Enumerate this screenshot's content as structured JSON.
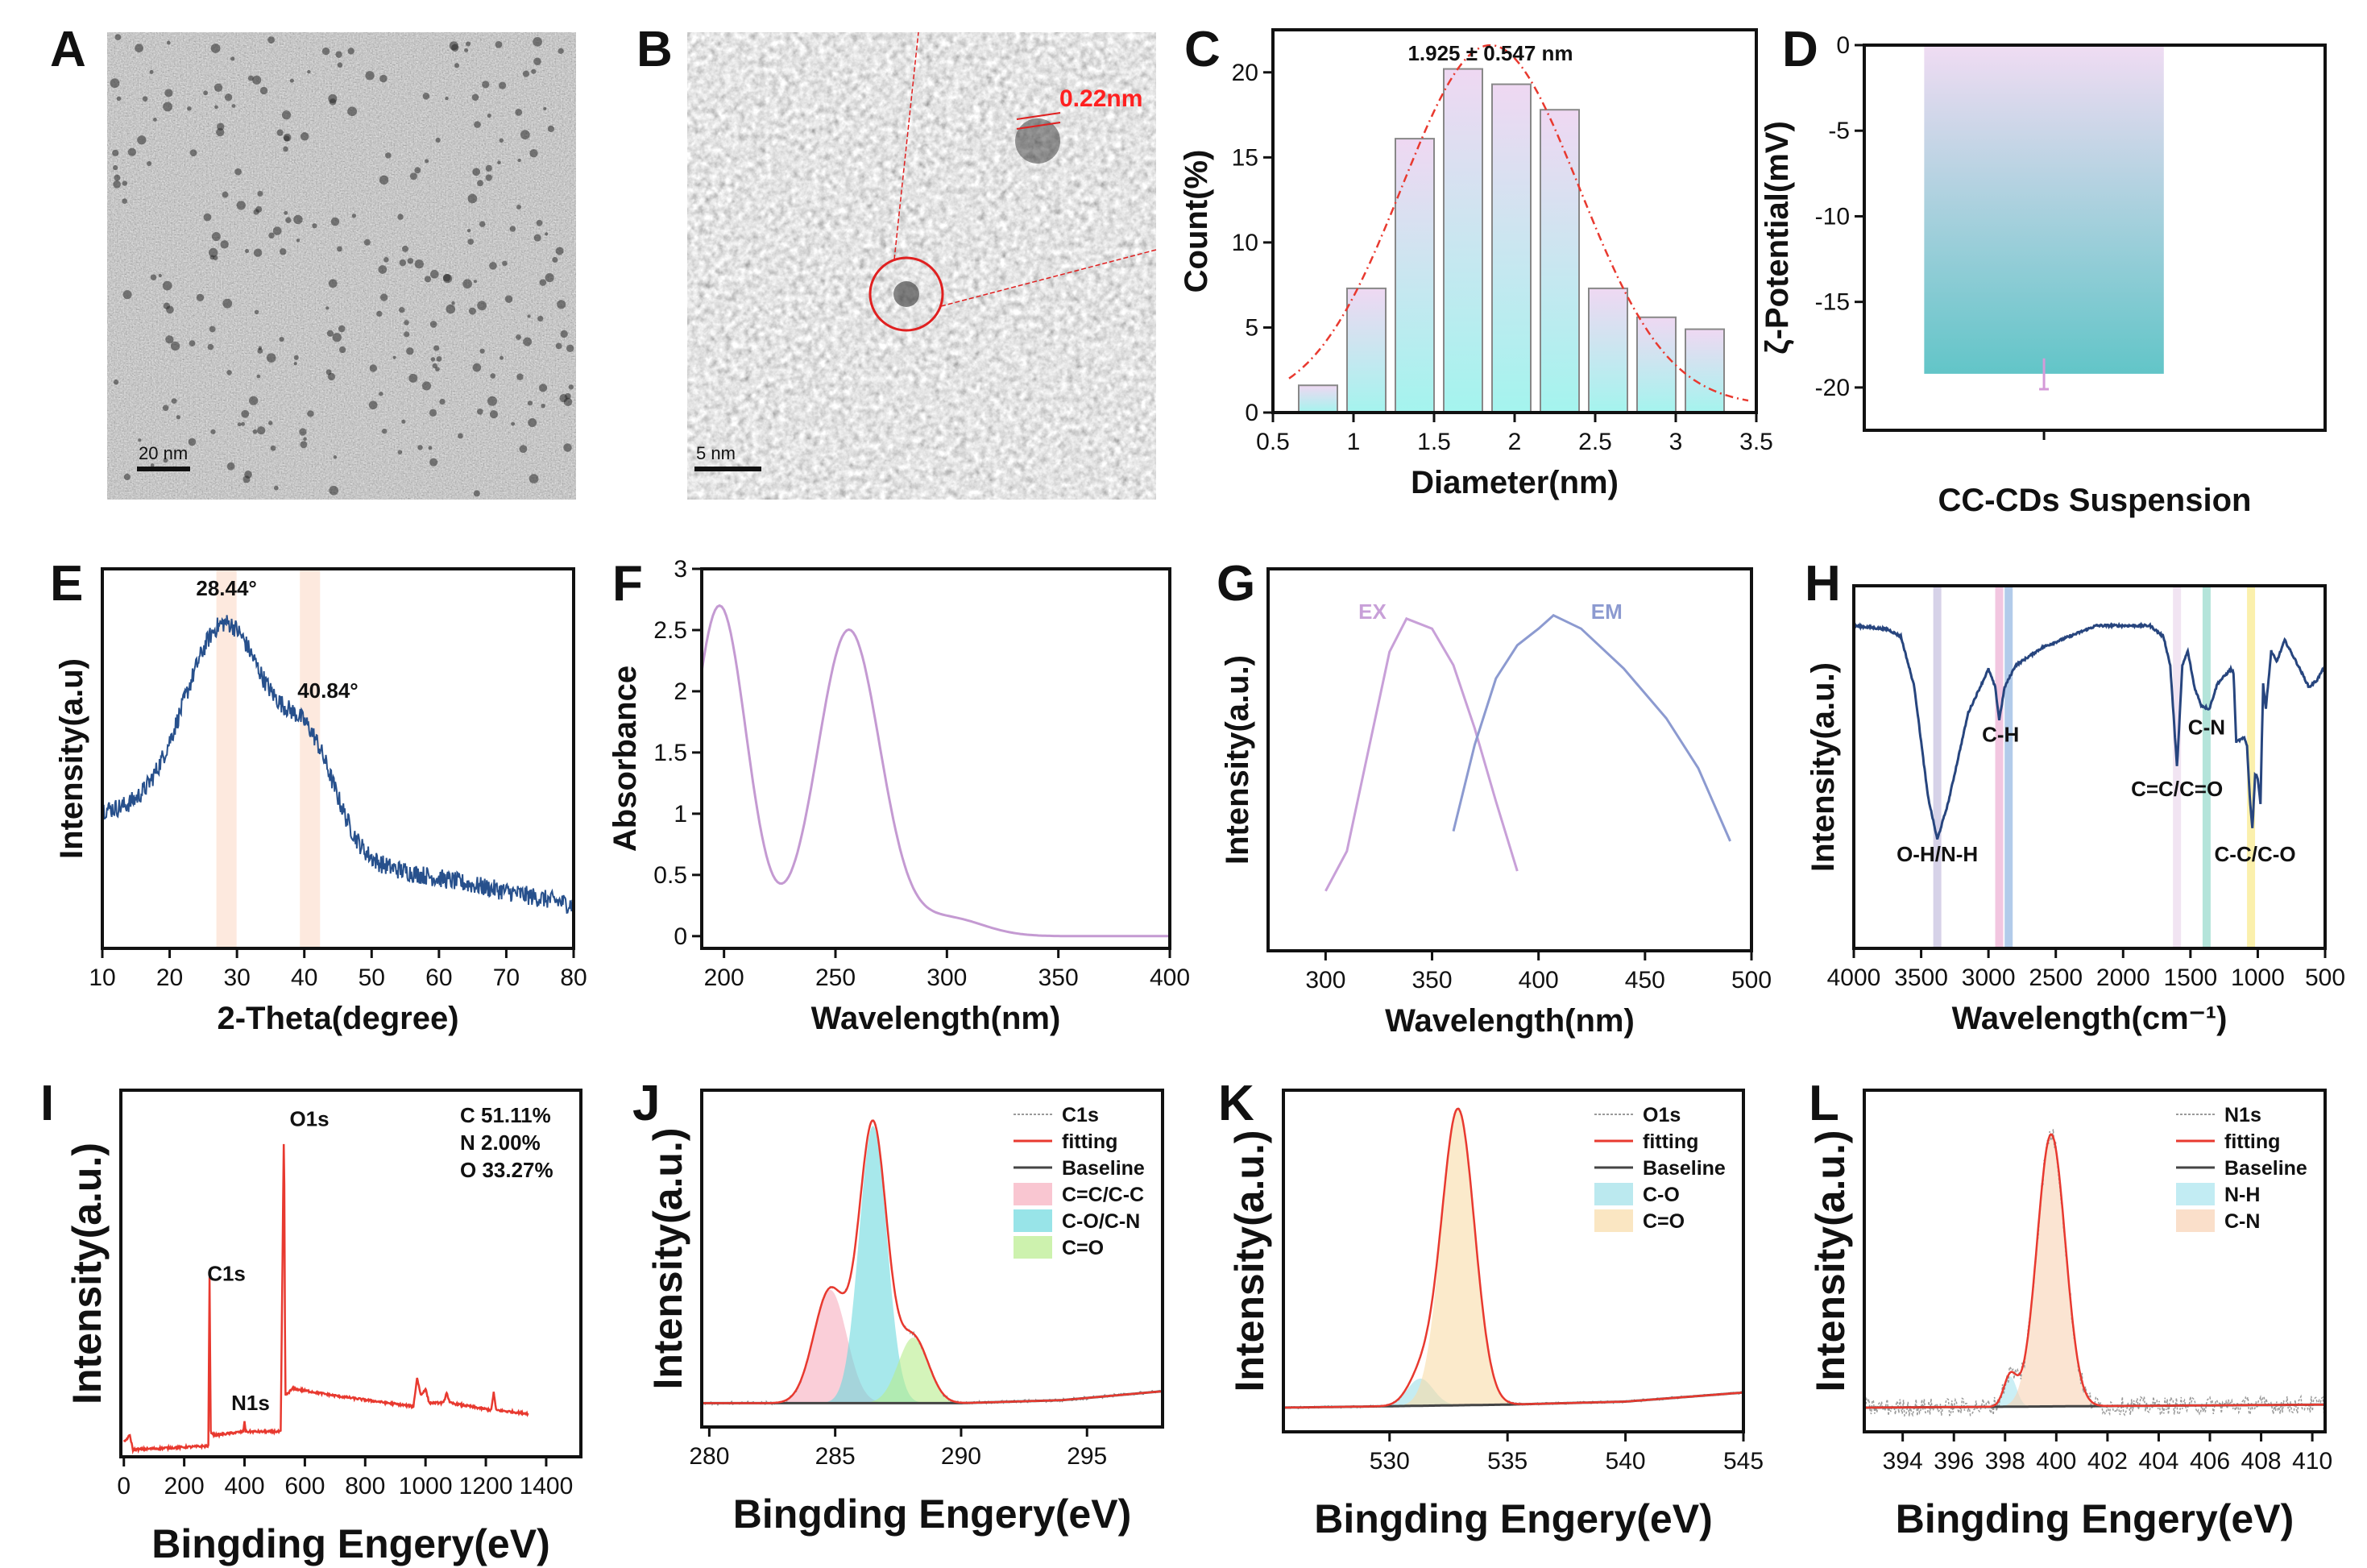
{
  "figure": {
    "panel_letters": [
      "A",
      "B",
      "C",
      "D",
      "E",
      "F",
      "G",
      "H",
      "I",
      "J",
      "K",
      "L"
    ]
  },
  "images": [
    {
      "panel": "A",
      "scale_bar": "20 nm"
    },
    {
      "panel": "B",
      "scale_bar": "5 nm",
      "lattice_annotation": "0.22nm",
      "annotation_color": "#ff2020"
    }
  ],
  "chart_data": [
    {
      "panel": "C",
      "type": "bar",
      "xlabel": "Diameter(nm)",
      "ylabel": "Count(%)",
      "annotation": "1.925 ± 0.547 nm",
      "x": [
        0.78,
        1.08,
        1.38,
        1.68,
        1.98,
        2.28,
        2.58,
        2.88,
        3.18
      ],
      "bar_width": 0.24,
      "values": [
        1.6,
        7.3,
        16.1,
        20.2,
        19.3,
        17.8,
        7.3,
        5.6,
        4.9
      ],
      "fit": {
        "type": "gaussian",
        "center": 1.85,
        "height": 21.2,
        "sigma": 0.55,
        "color": "#e8392f"
      },
      "xlim": [
        0.5,
        3.5
      ],
      "ylim": [
        0,
        22.5
      ],
      "xticks": [
        0.5,
        1.0,
        1.5,
        2.0,
        2.5,
        3.0,
        3.5
      ],
      "yticks": [
        0,
        5,
        10,
        15,
        20
      ],
      "colors": {
        "top": "#efd8f2",
        "bottom": "#a4f4ee"
      }
    },
    {
      "panel": "D",
      "type": "bar",
      "categories": [
        "CC-CDs Suspension"
      ],
      "values": [
        -19.2
      ],
      "error": [
        0.9
      ],
      "xlabel": "CC-CDs Suspension",
      "ylabel": "ζ-Potential(mV)",
      "ylim": [
        -22.5,
        0
      ],
      "yticks": [
        0,
        -5,
        -10,
        -15,
        -20
      ],
      "colors": {
        "top": "#f0dcf3",
        "bottom": "#62c5c8",
        "error": "#d49ad8"
      }
    },
    {
      "panel": "E",
      "type": "line",
      "xlabel": "2-Theta(degree)",
      "ylabel": "Intensity(a.u)",
      "xlim": [
        10,
        80
      ],
      "ylim": [
        0,
        1
      ],
      "xticks": [
        10,
        20,
        30,
        40,
        50,
        60,
        70,
        80
      ],
      "model": {
        "baseline_start": 0.36,
        "baseline_slope": -0.0035,
        "peaks": [
          {
            "center": 28.44,
            "height": 0.56,
            "sigma": 6.2
          },
          {
            "center": 40.84,
            "height": 0.25,
            "sigma": 4
          }
        ],
        "noise": 0.025
      },
      "bands": [
        28.44,
        40.84
      ],
      "band_color": "#fde3d6",
      "annotations": [
        {
          "text": "28.44°",
          "x": 28.44,
          "y": 0.93
        },
        {
          "text": "40.84°",
          "x": 43.5,
          "y": 0.66
        }
      ],
      "color": "#27508c"
    },
    {
      "panel": "F",
      "type": "line",
      "xlabel": "Wavelength(nm)",
      "ylabel": "Absorbance",
      "xlim": [
        190,
        400
      ],
      "ylim": [
        -0.1,
        3.0
      ],
      "xticks": [
        200,
        250,
        300,
        350,
        400
      ],
      "yticks": [
        0.0,
        0.5,
        1.0,
        1.5,
        2.0,
        2.5,
        3.0
      ],
      "model": {
        "peaks": [
          {
            "center": 198,
            "height": 2.7,
            "sigma": 12
          },
          {
            "center": 256,
            "height": 2.5,
            "sigma": 14
          },
          {
            "center": 300,
            "height": 0.15,
            "sigma": 16
          }
        ]
      },
      "color": "#c49ad2"
    },
    {
      "panel": "G",
      "type": "line",
      "xlabel": "Wavelength(nm)",
      "ylabel": "Intensity(a.u.)",
      "xlim": [
        273,
        500
      ],
      "ylim": [
        0,
        1.15
      ],
      "xticks": [
        300,
        350,
        400,
        450,
        500
      ],
      "series": [
        {
          "name": "EX",
          "color": "#c8a0d8",
          "points": [
            [
              300,
              0.18
            ],
            [
              310,
              0.3
            ],
            [
              320,
              0.6
            ],
            [
              330,
              0.9
            ],
            [
              338,
              1.0
            ],
            [
              350,
              0.97
            ],
            [
              360,
              0.86
            ],
            [
              370,
              0.67
            ],
            [
              380,
              0.45
            ],
            [
              390,
              0.24
            ]
          ],
          "label_x": 322,
          "label_y": 1.0
        },
        {
          "name": "EM",
          "color": "#8c9ad0",
          "points": [
            [
              360,
              0.36
            ],
            [
              370,
              0.62
            ],
            [
              380,
              0.82
            ],
            [
              390,
              0.92
            ],
            [
              400,
              0.97
            ],
            [
              407,
              1.01
            ],
            [
              420,
              0.97
            ],
            [
              440,
              0.85
            ],
            [
              460,
              0.7
            ],
            [
              475,
              0.55
            ],
            [
              490,
              0.33
            ]
          ],
          "label_x": 432,
          "label_y": 1.0
        }
      ]
    },
    {
      "panel": "H",
      "type": "line",
      "xlabel": "Wavelength(cm⁻¹)",
      "ylabel": "Intensity(a.u.)",
      "xlim": [
        4000,
        500
      ],
      "ylim": [
        0,
        1
      ],
      "xticks": [
        4000,
        3500,
        3000,
        2500,
        2000,
        1500,
        1000,
        500
      ],
      "color": "#27457e",
      "points": [
        [
          4000,
          0.89
        ],
        [
          3750,
          0.88
        ],
        [
          3650,
          0.86
        ],
        [
          3550,
          0.72
        ],
        [
          3450,
          0.42
        ],
        [
          3380,
          0.3
        ],
        [
          3300,
          0.4
        ],
        [
          3150,
          0.65
        ],
        [
          3000,
          0.77
        ],
        [
          2950,
          0.72
        ],
        [
          2920,
          0.63
        ],
        [
          2880,
          0.72
        ],
        [
          2800,
          0.78
        ],
        [
          2600,
          0.83
        ],
        [
          2400,
          0.86
        ],
        [
          2200,
          0.89
        ],
        [
          1800,
          0.89
        ],
        [
          1700,
          0.86
        ],
        [
          1650,
          0.78
        ],
        [
          1600,
          0.5
        ],
        [
          1560,
          0.78
        ],
        [
          1520,
          0.82
        ],
        [
          1470,
          0.72
        ],
        [
          1420,
          0.67
        ],
        [
          1360,
          0.66
        ],
        [
          1300,
          0.73
        ],
        [
          1200,
          0.77
        ],
        [
          1180,
          0.76
        ],
        [
          1160,
          0.57
        ],
        [
          1100,
          0.58
        ],
        [
          1080,
          0.56
        ],
        [
          1060,
          0.42
        ],
        [
          1040,
          0.33
        ],
        [
          1020,
          0.48
        ],
        [
          1000,
          0.47
        ],
        [
          980,
          0.4
        ],
        [
          960,
          0.73
        ],
        [
          940,
          0.66
        ],
        [
          900,
          0.82
        ],
        [
          860,
          0.79
        ],
        [
          800,
          0.85
        ],
        [
          700,
          0.78
        ],
        [
          620,
          0.72
        ],
        [
          560,
          0.74
        ],
        [
          500,
          0.78
        ]
      ],
      "bands": [
        {
          "x": 3380,
          "color": "#d6d2e8"
        },
        {
          "x": 2920,
          "color": "#f2c6e0"
        },
        {
          "x": 2850,
          "color": "#b2cbea"
        },
        {
          "x": 1600,
          "color": "#f1e4f2"
        },
        {
          "x": 1380,
          "color": "#b4e4da"
        },
        {
          "x": 1050,
          "color": "#fbf0ac"
        }
      ],
      "annotations": [
        {
          "text": "O-H/N-H",
          "x": 3380,
          "y": 0.24
        },
        {
          "text": "C-H",
          "x": 2910,
          "y": 0.57
        },
        {
          "text": "C=C/C=O",
          "x": 1600,
          "y": 0.42
        },
        {
          "text": "C-N",
          "x": 1380,
          "y": 0.59
        },
        {
          "text": "C-C/C-O",
          "x": 1020,
          "y": 0.24
        }
      ]
    },
    {
      "panel": "I",
      "type": "line",
      "xlabel": "Bingding Engery(eV)",
      "ylabel": "Intensity(a.u.)",
      "xlim": [
        -10,
        1515
      ],
      "ylim": [
        0,
        1.02
      ],
      "xticks": [
        0,
        200,
        400,
        600,
        800,
        1000,
        1200,
        1400
      ],
      "color": "#e8392f",
      "points": [
        [
          0,
          0.04
        ],
        [
          20,
          0.06
        ],
        [
          30,
          0.02
        ],
        [
          280,
          0.03
        ],
        [
          284,
          0.5
        ],
        [
          288,
          0.07
        ],
        [
          300,
          0.06
        ],
        [
          396,
          0.07
        ],
        [
          400,
          0.1
        ],
        [
          404,
          0.07
        ],
        [
          520,
          0.07
        ],
        [
          531,
          0.95
        ],
        [
          535,
          0.17
        ],
        [
          560,
          0.19
        ],
        [
          700,
          0.17
        ],
        [
          960,
          0.14
        ],
        [
          972,
          0.22
        ],
        [
          985,
          0.17
        ],
        [
          1000,
          0.19
        ],
        [
          1012,
          0.15
        ],
        [
          1060,
          0.15
        ],
        [
          1070,
          0.18
        ],
        [
          1080,
          0.15
        ],
        [
          1218,
          0.13
        ],
        [
          1226,
          0.18
        ],
        [
          1234,
          0.13
        ],
        [
          1340,
          0.12
        ]
      ],
      "annotations": [
        {
          "text": "O1s",
          "x": 615,
          "y": 0.92
        },
        {
          "text": "C1s",
          "x": 340,
          "y": 0.49
        },
        {
          "text": "N1s",
          "x": 420,
          "y": 0.13
        }
      ],
      "composition": [
        "C  51.11%",
        "N  2.00%",
        "O  33.27%"
      ]
    },
    {
      "panel": "J",
      "type": "xps_fit",
      "xlabel": "Bingding Engery(eV)",
      "ylabel": "Intensity(a.u.)",
      "xlim": [
        279.7,
        298
      ],
      "ylim": [
        -0.08,
        1.05
      ],
      "xticks": [
        280,
        285,
        290,
        295
      ],
      "baseline": [
        [
          279.7,
          0.0
        ],
        [
          290,
          0.0
        ],
        [
          294,
          0.01
        ],
        [
          298,
          0.04
        ]
      ],
      "components": [
        {
          "name": "C=C/C-C",
          "center": 284.8,
          "height": 0.38,
          "sigma": 0.65,
          "color": "#f7aebe"
        },
        {
          "name": "C-O/C-N",
          "center": 286.5,
          "height": 0.93,
          "sigma": 0.55,
          "color": "#6cd8de"
        },
        {
          "name": "C=O",
          "center": 288.1,
          "height": 0.22,
          "sigma": 0.6,
          "color": "#b8ec8c"
        }
      ],
      "legend": [
        "C1s",
        "fitting",
        "Baseline",
        "C=C/C-C",
        "C-O/C-N",
        "C=O"
      ],
      "noise": 0.006
    },
    {
      "panel": "K",
      "type": "xps_fit",
      "xlabel": "Bingding Engery(eV)",
      "ylabel": "Intensity(a.u.)",
      "xlim": [
        525.5,
        545
      ],
      "ylim": [
        -0.08,
        1.05
      ],
      "xticks": [
        530,
        535,
        540,
        545
      ],
      "baseline": [
        [
          525.5,
          0.0
        ],
        [
          535,
          0.01
        ],
        [
          540,
          0.02
        ],
        [
          545,
          0.05
        ]
      ],
      "components": [
        {
          "name": "C-O",
          "center": 531.3,
          "height": 0.09,
          "sigma": 0.55,
          "color": "#9ee0e8"
        },
        {
          "name": "C=O",
          "center": 532.9,
          "height": 0.98,
          "sigma": 0.7,
          "color": "#f8dca8"
        }
      ],
      "legend": [
        "O1s",
        "fitting",
        "Baseline",
        "C-O",
        "C=O"
      ],
      "noise": 0.004
    },
    {
      "panel": "L",
      "type": "xps_fit",
      "xlabel": "Bingding Engery(eV)",
      "ylabel": "Intensity(a.u.)",
      "xlim": [
        392.5,
        410.5
      ],
      "ylim": [
        -0.08,
        1.05
      ],
      "xticks": [
        394,
        396,
        398,
        400,
        402,
        404,
        406,
        408,
        410
      ],
      "baseline": [
        [
          392.5,
          0.0
        ],
        [
          410.5,
          0.01
        ]
      ],
      "components": [
        {
          "name": "N-H",
          "center": 398.2,
          "height": 0.1,
          "sigma": 0.25,
          "color": "#a8e4ee"
        },
        {
          "name": "C-N",
          "center": 399.8,
          "height": 0.9,
          "sigma": 0.55,
          "color": "#f8d2b4"
        }
      ],
      "legend": [
        "N1s",
        "fitting",
        "Baseline",
        "N-H",
        "C-N"
      ],
      "noise": 0.03
    },
    {
      "legend_styles": {
        "raw": "#9a9a9a",
        "fitting": "#e8392f",
        "baseline": "#444444"
      }
    }
  ]
}
